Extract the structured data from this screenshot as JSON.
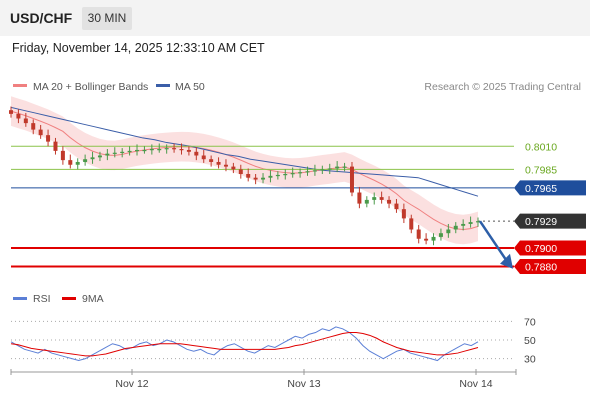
{
  "header": {
    "symbol": "USD/CHF",
    "timeframe": "30 MIN"
  },
  "subtitle": "Friday, November 14, 2025 12:33:10 AM CET",
  "credit": "Research © 2025 Trading Central",
  "legend": {
    "ma20_label": "MA 20 + Bollinger Bands",
    "ma50_label": "MA 50",
    "rsi_label": "RSI",
    "ma9_label": "9MA"
  },
  "colors": {
    "up_candle": "#4a9a4a",
    "down_candle": "#c0392b",
    "bollinger_fill": "#f9d5d5",
    "ma20": "#f08080",
    "ma50": "#3b5ea8",
    "resistance": "#8bc34a",
    "pivot": "#1f4e9c",
    "support": "#e00000",
    "last_price": "#333333",
    "rsi": "#5b7fd6",
    "rsi_ma": "#e00000",
    "arrow": "#2d5fa8"
  },
  "chart_data": [
    {
      "type": "candlestick",
      "title": "USD/CHF",
      "x_ticks": [
        "Nov 12",
        "Nov 13",
        "Nov 14"
      ],
      "levels": [
        {
          "label": "0.8010",
          "value": 0.801,
          "kind": "resistance"
        },
        {
          "label": "0.7985",
          "value": 0.7985,
          "kind": "resistance"
        },
        {
          "label": "0.7965",
          "value": 0.7965,
          "kind": "pivot"
        },
        {
          "label": "0.7929",
          "value": 0.7929,
          "kind": "last"
        },
        {
          "label": "0.7900",
          "value": 0.79,
          "kind": "support"
        },
        {
          "label": "0.7880",
          "value": 0.788,
          "kind": "support"
        }
      ],
      "close_series": [
        0.8045,
        0.804,
        0.8035,
        0.8028,
        0.8022,
        0.8015,
        0.8005,
        0.7995,
        0.799,
        0.7993,
        0.7996,
        0.7998,
        0.8,
        0.8002,
        0.8003,
        0.8004,
        0.8005,
        0.8006,
        0.8006,
        0.8007,
        0.8007,
        0.8008,
        0.8007,
        0.8006,
        0.8004,
        0.8,
        0.7996,
        0.7993,
        0.799,
        0.7988,
        0.7985,
        0.798,
        0.7976,
        0.7974,
        0.7976,
        0.7978,
        0.7979,
        0.798,
        0.7981,
        0.7982,
        0.7983,
        0.7984,
        0.7985,
        0.7986,
        0.7988,
        0.7988,
        0.796,
        0.7948,
        0.7952,
        0.7955,
        0.7952,
        0.7948,
        0.7942,
        0.7932,
        0.792,
        0.791,
        0.7908,
        0.7912,
        0.7916,
        0.792,
        0.7924,
        0.7926,
        0.7928,
        0.7929
      ],
      "ma50_series": [
        0.8052,
        0.8049,
        0.8046,
        0.8043,
        0.804,
        0.8037,
        0.8034,
        0.8031,
        0.8028,
        0.8025,
        0.8022,
        0.8019,
        0.8017,
        0.8014,
        0.8012,
        0.801,
        0.8007,
        0.8004,
        0.8001,
        0.7999,
        0.7996,
        0.7994,
        0.7992,
        0.799,
        0.7988,
        0.7986,
        0.7984,
        0.7983,
        0.7982,
        0.7981,
        0.798,
        0.7979,
        0.7978,
        0.7977,
        0.7976,
        0.7972,
        0.7968,
        0.7964,
        0.796,
        0.7956
      ],
      "ylim": [
        0.786,
        0.806
      ]
    },
    {
      "type": "line",
      "title": "RSI",
      "y_ticks": [
        70,
        50,
        30
      ],
      "ylim": [
        20,
        80
      ],
      "series": [
        {
          "name": "RSI",
          "values": [
            48,
            44,
            40,
            38,
            36,
            40,
            36,
            34,
            32,
            30,
            28,
            30,
            34,
            38,
            42,
            46,
            44,
            40,
            42,
            46,
            48,
            44,
            46,
            50,
            48,
            44,
            40,
            38,
            40,
            36,
            34,
            40,
            44,
            46,
            42,
            38,
            36,
            40,
            44,
            42,
            46,
            50,
            54,
            52,
            56,
            58,
            62,
            60,
            64,
            62,
            58,
            52,
            44,
            38,
            34,
            30,
            34,
            38,
            40,
            36,
            34,
            32,
            30,
            28,
            34,
            38,
            42,
            46,
            44,
            48
          ]
        },
        {
          "name": "9MA",
          "values": [
            46,
            45,
            43,
            41,
            40,
            39,
            38,
            37,
            36,
            35,
            34,
            33,
            33,
            34,
            35,
            37,
            39,
            41,
            42,
            43,
            44,
            45,
            46,
            46,
            46,
            46,
            45,
            44,
            43,
            42,
            41,
            40,
            40,
            40,
            40,
            40,
            40,
            40,
            40,
            40,
            41,
            42,
            44,
            45,
            47,
            49,
            51,
            53,
            55,
            57,
            58,
            58,
            57,
            55,
            52,
            48,
            45,
            42,
            40,
            38,
            37,
            36,
            35,
            34,
            34,
            35,
            36,
            38,
            40,
            42
          ]
        }
      ]
    }
  ]
}
